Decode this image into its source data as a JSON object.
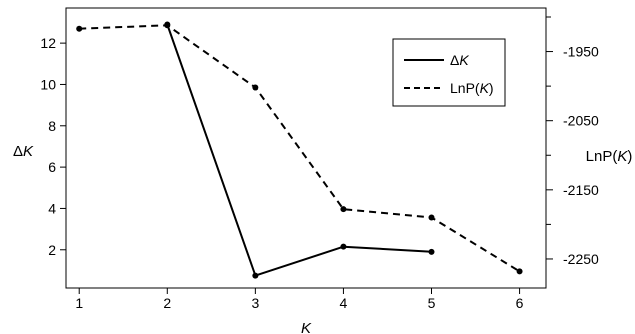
{
  "chart_data": {
    "type": "line",
    "x": [
      1,
      2,
      3,
      4,
      5,
      6
    ],
    "xlabel": "K",
    "xlim": [
      0.85,
      6.3
    ],
    "xticks": [
      "1",
      "2",
      "3",
      "4",
      "5",
      "6"
    ],
    "left_axis": {
      "label_prefix": "Δ",
      "label_var": "K",
      "ylim": [
        0.15,
        13.7
      ],
      "ticks": [
        "2",
        "4",
        "6",
        "8",
        "10",
        "12"
      ]
    },
    "right_axis": {
      "label_prefix": "LnP(",
      "label_var": "K",
      "label_suffix": ")",
      "ylim": [
        -2292,
        -1887
      ],
      "ticks": [
        "-1950",
        "-2050",
        "-2150",
        "-2250"
      ]
    },
    "series": [
      {
        "legend_prefix": "Δ",
        "legend_var": "K",
        "legend_suffix": "",
        "axis": "left",
        "style": "solid",
        "x": [
          2,
          3,
          4,
          5
        ],
        "values": [
          12.9,
          0.75,
          2.15,
          1.9
        ]
      },
      {
        "legend_prefix": "LnP(",
        "legend_var": "K",
        "legend_suffix": ")",
        "axis": "right",
        "style": "dashed",
        "x": [
          1,
          2,
          3,
          4,
          5,
          6
        ],
        "values": [
          -1917,
          -1912,
          -2002,
          -2178,
          -2190,
          -2268
        ]
      }
    ],
    "legend": "top-right",
    "grid": false,
    "colors": {
      "line": "#000000",
      "background": "#ffffff"
    }
  }
}
